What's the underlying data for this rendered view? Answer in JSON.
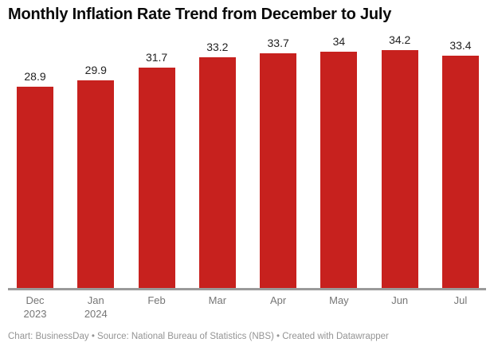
{
  "chart_data": {
    "type": "bar",
    "title": "Monthly Inflation Rate Trend from December to July",
    "categories": [
      "Dec 2023",
      "Jan 2024",
      "Feb",
      "Mar",
      "Apr",
      "May",
      "Jun",
      "Jul"
    ],
    "values": [
      28.9,
      29.9,
      31.7,
      33.2,
      33.7,
      34,
      34.2,
      33.4
    ],
    "points": [
      {
        "month": "Dec",
        "year": "2023",
        "value": 28.9,
        "label": "28.9"
      },
      {
        "month": "Jan",
        "year": "2024",
        "value": 29.9,
        "label": "29.9"
      },
      {
        "month": "Feb",
        "year": "",
        "value": 31.7,
        "label": "31.7"
      },
      {
        "month": "Mar",
        "year": "",
        "value": 33.2,
        "label": "33.2"
      },
      {
        "month": "Apr",
        "year": "",
        "value": 33.7,
        "label": "33.7"
      },
      {
        "month": "May",
        "year": "",
        "value": 34,
        "label": "34"
      },
      {
        "month": "Jun",
        "year": "",
        "value": 34.2,
        "label": "34.2"
      },
      {
        "month": "Jul",
        "year": "",
        "value": 33.4,
        "label": "33.4"
      }
    ],
    "ylim": [
      0,
      34.2
    ],
    "grid": false,
    "legend": "none",
    "value_labels_shown": true,
    "bar_color": "#c7211e",
    "value_label_color": "#222222",
    "axis_label_color": "#767676",
    "axis_line_color": "#9a9a9a"
  },
  "footer": {
    "text": "Chart: BusinessDay • Source: National Bureau of Statistics (NBS) • Created with Datawrapper"
  }
}
